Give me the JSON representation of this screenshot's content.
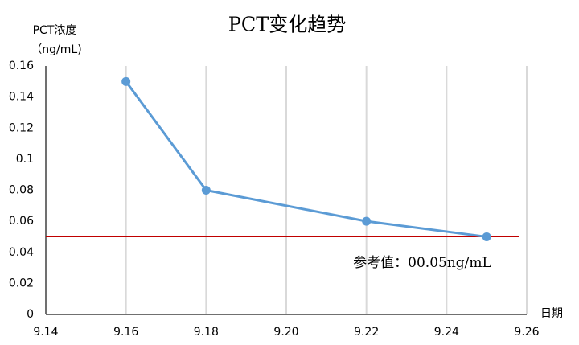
{
  "chart_data": {
    "type": "line",
    "title": "PCT变化趋势",
    "ylabel": [
      "PCT浓度",
      "（ng/mL)"
    ],
    "xlabel": "日期",
    "x": [
      9.16,
      9.18,
      9.22,
      9.25
    ],
    "series": [
      {
        "name": "PCT",
        "color": "#5b9bd5",
        "values": [
          0.15,
          0.08,
          0.06,
          0.05
        ]
      }
    ],
    "xlim": [
      9.14,
      9.26
    ],
    "xticks": [
      9.14,
      9.16,
      9.18,
      {
        "value": 9.2,
        "label": "9.20"
      },
      9.22,
      9.24,
      9.26
    ],
    "ylim": [
      0,
      0.16
    ],
    "yticks": [
      0,
      0.02,
      0.04,
      0.06,
      0.08,
      0.1,
      0.12,
      0.14,
      0.16
    ],
    "grid": "x",
    "reference_line": {
      "value": 0.05,
      "label": "参考值：00.05ng/mL",
      "color": "#c00000"
    }
  }
}
